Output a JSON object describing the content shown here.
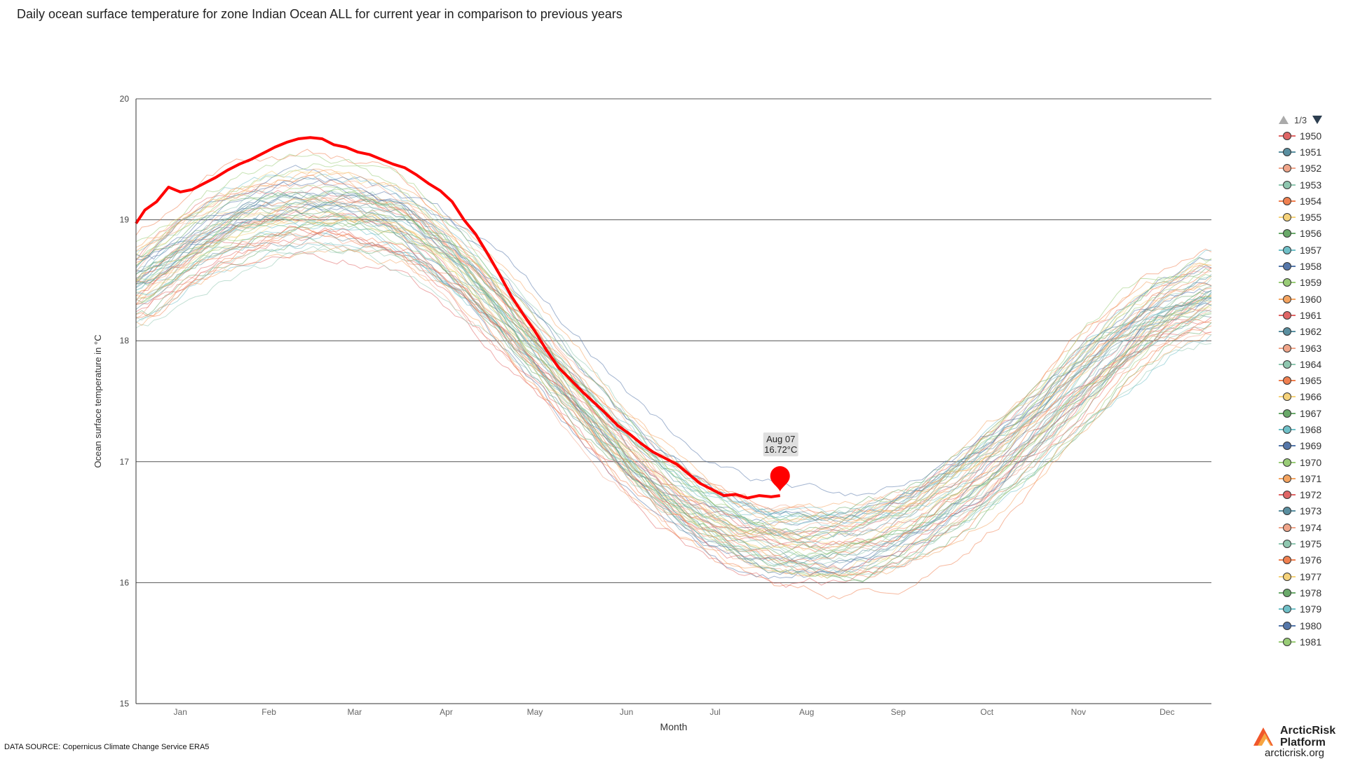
{
  "title": "Daily ocean surface temperature for zone Indian Ocean ALL for current year in comparison to previous years",
  "source": "DATA SOURCE: Copernicus Climate Change Service ERA5",
  "logo": {
    "name_line1": "ArcticRisk",
    "name_line2": "Platform",
    "url": "arcticrisk.org"
  },
  "legend": {
    "pager": "1/3",
    "items": [
      {
        "label": "1950",
        "color": "#e06666"
      },
      {
        "label": "1951",
        "color": "#5a8fa0"
      },
      {
        "label": "1952",
        "color": "#f0a58a"
      },
      {
        "label": "1953",
        "color": "#8fc7b0"
      },
      {
        "label": "1954",
        "color": "#f08050"
      },
      {
        "label": "1955",
        "color": "#f5d27a"
      },
      {
        "label": "1956",
        "color": "#6aaa6a"
      },
      {
        "label": "1957",
        "color": "#6fc0c8"
      },
      {
        "label": "1958",
        "color": "#5577aa"
      },
      {
        "label": "1959",
        "color": "#99cc77"
      },
      {
        "label": "1960",
        "color": "#f4a460"
      },
      {
        "label": "1961",
        "color": "#e06666"
      },
      {
        "label": "1962",
        "color": "#5a8fa0"
      },
      {
        "label": "1963",
        "color": "#f0a58a"
      },
      {
        "label": "1964",
        "color": "#8fc7b0"
      },
      {
        "label": "1965",
        "color": "#f08050"
      },
      {
        "label": "1966",
        "color": "#f5d27a"
      },
      {
        "label": "1967",
        "color": "#6aaa6a"
      },
      {
        "label": "1968",
        "color": "#6fc0c8"
      },
      {
        "label": "1969",
        "color": "#5577aa"
      },
      {
        "label": "1970",
        "color": "#99cc77"
      },
      {
        "label": "1971",
        "color": "#f4a460"
      },
      {
        "label": "1972",
        "color": "#e06666"
      },
      {
        "label": "1973",
        "color": "#5a8fa0"
      },
      {
        "label": "1974",
        "color": "#f0a58a"
      },
      {
        "label": "1975",
        "color": "#8fc7b0"
      },
      {
        "label": "1976",
        "color": "#f08050"
      },
      {
        "label": "1977",
        "color": "#f5d27a"
      },
      {
        "label": "1978",
        "color": "#6aaa6a"
      },
      {
        "label": "1979",
        "color": "#6fc0c8"
      },
      {
        "label": "1980",
        "color": "#5577aa"
      },
      {
        "label": "1981",
        "color": "#99cc77"
      }
    ]
  },
  "chart_data": {
    "type": "line",
    "title": "Daily ocean surface temperature for zone Indian Ocean ALL for current year in comparison to previous years",
    "xlabel": "Month",
    "ylabel": "Ocean surface temperature in °C",
    "x_ticks": [
      "Jan",
      "Feb",
      "Mar",
      "Apr",
      "May",
      "Jun",
      "Jul",
      "Aug",
      "Sep",
      "Oct",
      "Nov",
      "Dec"
    ],
    "x_range_day_of_year": [
      1,
      365
    ],
    "ylim": [
      15,
      20
    ],
    "y_ticks": [
      15,
      16,
      17,
      18,
      19,
      20
    ],
    "grid": "horizontal",
    "legend_placement": "right",
    "current_year": {
      "color": "#ff0000",
      "x_day_of_year": [
        1,
        4,
        8,
        12,
        16,
        20,
        24,
        28,
        32,
        36,
        40,
        44,
        48,
        52,
        56,
        60,
        64,
        68,
        72,
        76,
        80,
        84,
        88,
        92,
        96,
        100,
        104,
        108,
        112,
        116,
        120,
        124,
        128,
        132,
        136,
        140,
        144,
        148,
        152,
        156,
        160,
        164,
        168,
        172,
        176,
        180,
        184,
        188,
        192,
        196,
        200,
        204,
        208,
        212,
        216,
        219
      ],
      "y": [
        18.97,
        19.08,
        19.15,
        19.27,
        19.23,
        19.25,
        19.3,
        19.35,
        19.41,
        19.46,
        19.5,
        19.55,
        19.6,
        19.64,
        19.67,
        19.68,
        19.67,
        19.62,
        19.6,
        19.56,
        19.54,
        19.5,
        19.46,
        19.43,
        19.37,
        19.3,
        19.24,
        19.15,
        19.0,
        18.88,
        18.72,
        18.55,
        18.37,
        18.22,
        18.08,
        17.92,
        17.78,
        17.68,
        17.58,
        17.49,
        17.4,
        17.3,
        17.23,
        17.15,
        17.08,
        17.03,
        16.98,
        16.9,
        16.82,
        16.77,
        16.72,
        16.73,
        16.7,
        16.72,
        16.71,
        16.72
      ]
    },
    "tooltip": {
      "label": "Aug 07",
      "value": "16.72°C"
    },
    "reference_years": {
      "years": "1950–2023 (one thin line per year; first page of legend shows 1950–1981)",
      "mean_curve_day_of_year": [
        1,
        15,
        30,
        45,
        60,
        75,
        90,
        105,
        120,
        135,
        150,
        165,
        180,
        195,
        210,
        225,
        240,
        255,
        270,
        285,
        300,
        315,
        330,
        345,
        365
      ],
      "mean_curve_y": [
        18.35,
        18.6,
        18.8,
        18.93,
        18.98,
        18.96,
        18.85,
        18.6,
        18.25,
        17.85,
        17.45,
        17.05,
        16.72,
        16.48,
        16.33,
        16.27,
        16.28,
        16.37,
        16.55,
        16.8,
        17.1,
        17.45,
        17.8,
        18.1,
        18.3
      ]
    }
  }
}
